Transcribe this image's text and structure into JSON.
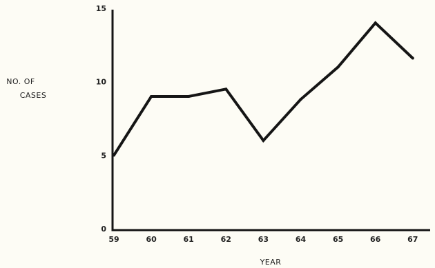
{
  "chart_data": {
    "type": "line",
    "title": "",
    "xlabel": "YEAR",
    "ylabel_lines": [
      "NO. OF",
      "CASES"
    ],
    "categories": [
      "59",
      "60",
      "61",
      "62",
      "63",
      "64",
      "65",
      "66",
      "67"
    ],
    "series": [
      {
        "values": [
          5,
          9,
          9,
          9.5,
          6,
          8.8,
          11,
          14,
          11.6
        ]
      }
    ],
    "y_ticks": [
      "0",
      "5",
      "10",
      "15"
    ],
    "ylim": [
      0,
      15
    ],
    "grid": false,
    "legend": "none",
    "colors": {
      "line": "#151515",
      "axis": "#151515",
      "background": "#fdfcf5"
    }
  }
}
